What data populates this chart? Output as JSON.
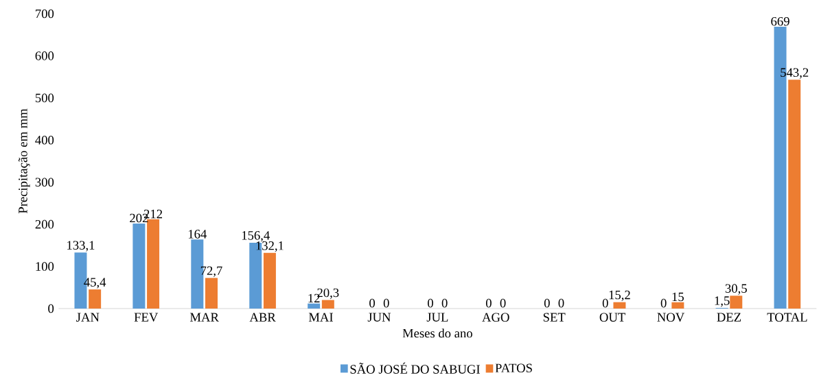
{
  "chart_data": {
    "type": "bar",
    "xlabel": "Meses do ano",
    "ylabel": "Precipitação em mm",
    "categories": [
      "JAN",
      "FEV",
      "MAR",
      "ABR",
      "MAI",
      "JUN",
      "JUL",
      "AGO",
      "SET",
      "OUT",
      "NOV",
      "DEZ",
      "TOTAL"
    ],
    "series": [
      {
        "name": "SÃO JOSÉ DO SABUGI",
        "color": "#5b9bd5",
        "values": [
          133.1,
          202,
          164,
          156.4,
          12,
          0,
          0,
          0,
          0,
          0,
          0,
          1.5,
          669
        ],
        "value_labels": [
          "133,1",
          "202",
          "164",
          "156,4",
          "12",
          "0",
          "0",
          "0",
          "0",
          "0",
          "0",
          "1,5",
          "669"
        ]
      },
      {
        "name": "PATOS",
        "color": "#ed7d31",
        "values": [
          45.4,
          212,
          72.7,
          132.1,
          20.3,
          0,
          0,
          0,
          0,
          15.2,
          15,
          30.5,
          543.2
        ],
        "value_labels": [
          "45,4",
          "212",
          "72,7",
          "132,1",
          "20,3",
          "0",
          "0",
          "0",
          "0",
          "15,2",
          "15",
          "30,5",
          "543,2"
        ]
      }
    ],
    "ylim": [
      0,
      700
    ],
    "yticks": [
      0,
      100,
      200,
      300,
      400,
      500,
      600,
      700
    ],
    "grid": false,
    "legend": "bottom"
  }
}
